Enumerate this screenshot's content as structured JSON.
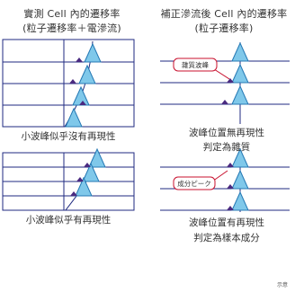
{
  "left_panel": {
    "title_line1": "實測 Cell 內的遷移率",
    "title_line2": "(粒子遷移率＋電滲流)",
    "top_caption": "小波峰似乎沒有再現性",
    "bottom_caption": "小波峰似乎有再現性"
  },
  "right_panel": {
    "title_line1": "補正滲流後 Cell 內的遷移率",
    "title_line2": "(粒子遷移率)",
    "top_callout": "雜質波峰",
    "top_caption_line1": "波峰位置無再現性",
    "top_caption_line2": "判定為雜質",
    "bottom_callout": "成分ピーク",
    "bottom_caption_line1": "波峰位置有再現性",
    "bottom_caption_line2": "判定為樣本成分"
  },
  "footnote": "示意",
  "colors": {
    "baseline": "#1f2a80",
    "peak_fill": "#7fc8ea",
    "peak_stroke": "#2478b4",
    "small_peak": "#4a2a80",
    "callout_border": "#c8102e"
  }
}
